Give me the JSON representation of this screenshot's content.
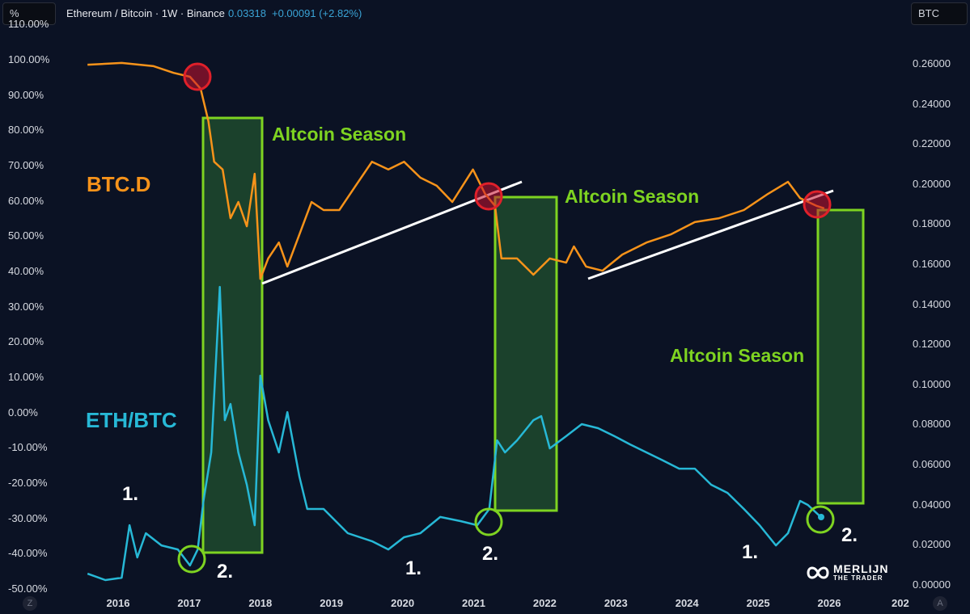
{
  "header": {
    "scale": "%",
    "title": "Ethereum / Bitcoin · 1W · Binance",
    "price": "0.03318",
    "change": "+0.00091 (+2.82%)",
    "currency": "BTC"
  },
  "footer": {
    "left_button": "Z",
    "right_button": "A"
  },
  "logo": {
    "line1": "MERLIJN",
    "line2": "THE TRADER"
  },
  "chart_data": {
    "type": "line",
    "title": "Ethereum / Bitcoin · 1W · Binance",
    "x_ticks": [
      "2016",
      "2017",
      "2018",
      "2019",
      "2020",
      "2021",
      "2022",
      "2023",
      "2024",
      "2025",
      "2026",
      "202"
    ],
    "left_axis": {
      "ticks": [
        "110.00%",
        "100.00%",
        "90.00%",
        "80.00%",
        "70.00%",
        "60.00%",
        "50.00%",
        "40.00%",
        "30.00%",
        "20.00%",
        "10.00%",
        "0.00%",
        "-10.00%",
        "-20.00%",
        "-30.00%",
        "-40.00%",
        "-50.00%"
      ],
      "range": [
        -50,
        110
      ]
    },
    "right_axis": {
      "ticks": [
        "0.26000",
        "0.24000",
        "0.22000",
        "0.20000",
        "0.18000",
        "0.16000",
        "0.14000",
        "0.12000",
        "0.10000",
        "0.08000",
        "0.06000",
        "0.04000",
        "0.02000",
        "0.00000"
      ],
      "range": [
        0,
        0.26
      ]
    },
    "series": [
      {
        "name": "BTC.D",
        "color": "#f7931a",
        "axis": "left",
        "x": [
          2015.57,
          2016.05,
          2016.5,
          2016.78,
          2017.01,
          2017.16,
          2017.27,
          2017.35,
          2017.47,
          2017.58,
          2017.69,
          2017.81,
          2017.92,
          2018.0,
          2018.11,
          2018.26,
          2018.38,
          2018.55,
          2018.72,
          2018.89,
          2019.11,
          2019.34,
          2019.57,
          2019.8,
          2020.02,
          2020.25,
          2020.48,
          2020.7,
          2020.99,
          2021.16,
          2021.3,
          2021.39,
          2021.61,
          2021.84,
          2022.07,
          2022.3,
          2022.41,
          2022.58,
          2022.81,
          2023.09,
          2023.43,
          2023.77,
          2024.11,
          2024.45,
          2024.8,
          2025.14,
          2025.42,
          2025.59,
          2025.82,
          2025.93
        ],
        "y": [
          98.6,
          99.1,
          98.2,
          96.3,
          95.2,
          91.8,
          82.6,
          71.1,
          68.9,
          55.1,
          59.7,
          52.8,
          67.7,
          37.9,
          43.7,
          48.2,
          41.4,
          50.5,
          59.7,
          57.4,
          57.4,
          64.3,
          71.1,
          68.9,
          71.1,
          66.6,
          64.3,
          59.7,
          68.9,
          62.0,
          58.6,
          43.7,
          43.7,
          39.1,
          43.7,
          42.5,
          47.1,
          41.4,
          40.2,
          44.8,
          48.2,
          50.5,
          54.0,
          55.1,
          57.4,
          62.0,
          65.4,
          60.8,
          58.6,
          57.9
        ]
      },
      {
        "name": "ETH/BTC",
        "color": "#27b8d6",
        "axis": "right",
        "x": [
          2015.57,
          2015.82,
          2016.05,
          2016.16,
          2016.27,
          2016.39,
          2016.61,
          2016.84,
          2017.01,
          2017.12,
          2017.2,
          2017.31,
          2017.43,
          2017.5,
          2017.58,
          2017.69,
          2017.81,
          2017.92,
          2018.0,
          2018.11,
          2018.26,
          2018.38,
          2018.55,
          2018.66,
          2018.89,
          2019.23,
          2019.57,
          2019.8,
          2020.02,
          2020.25,
          2020.53,
          2020.82,
          2021.05,
          2021.22,
          2021.33,
          2021.44,
          2021.61,
          2021.84,
          2021.95,
          2022.07,
          2022.3,
          2022.52,
          2022.75,
          2022.98,
          2023.2,
          2023.43,
          2023.66,
          2023.89,
          2024.11,
          2024.34,
          2024.57,
          2024.8,
          2025.02,
          2025.25,
          2025.42,
          2025.59,
          2025.7,
          2025.88
        ],
        "y": [
          0.0056,
          0.0024,
          0.0036,
          0.0298,
          0.0137,
          0.0258,
          0.0197,
          0.0177,
          0.0097,
          0.0177,
          0.0419,
          0.0661,
          0.1487,
          0.0822,
          0.0903,
          0.0661,
          0.05,
          0.0298,
          0.1044,
          0.0822,
          0.0661,
          0.0862,
          0.054,
          0.0379,
          0.0379,
          0.0258,
          0.0218,
          0.0177,
          0.0238,
          0.0258,
          0.0339,
          0.0318,
          0.0298,
          0.0379,
          0.0721,
          0.0661,
          0.0721,
          0.0822,
          0.0842,
          0.0681,
          0.0742,
          0.0802,
          0.0782,
          0.0742,
          0.0701,
          0.0661,
          0.0621,
          0.058,
          0.058,
          0.05,
          0.0459,
          0.0379,
          0.0298,
          0.0197,
          0.0258,
          0.0419,
          0.0399,
          0.0339
        ]
      }
    ],
    "annotations": {
      "season_label": "Altcoin Season",
      "btcd_label": "BTC.D",
      "ethbtc_label": "ETH/BTC",
      "marker_1": "1.",
      "marker_2": "2."
    }
  }
}
